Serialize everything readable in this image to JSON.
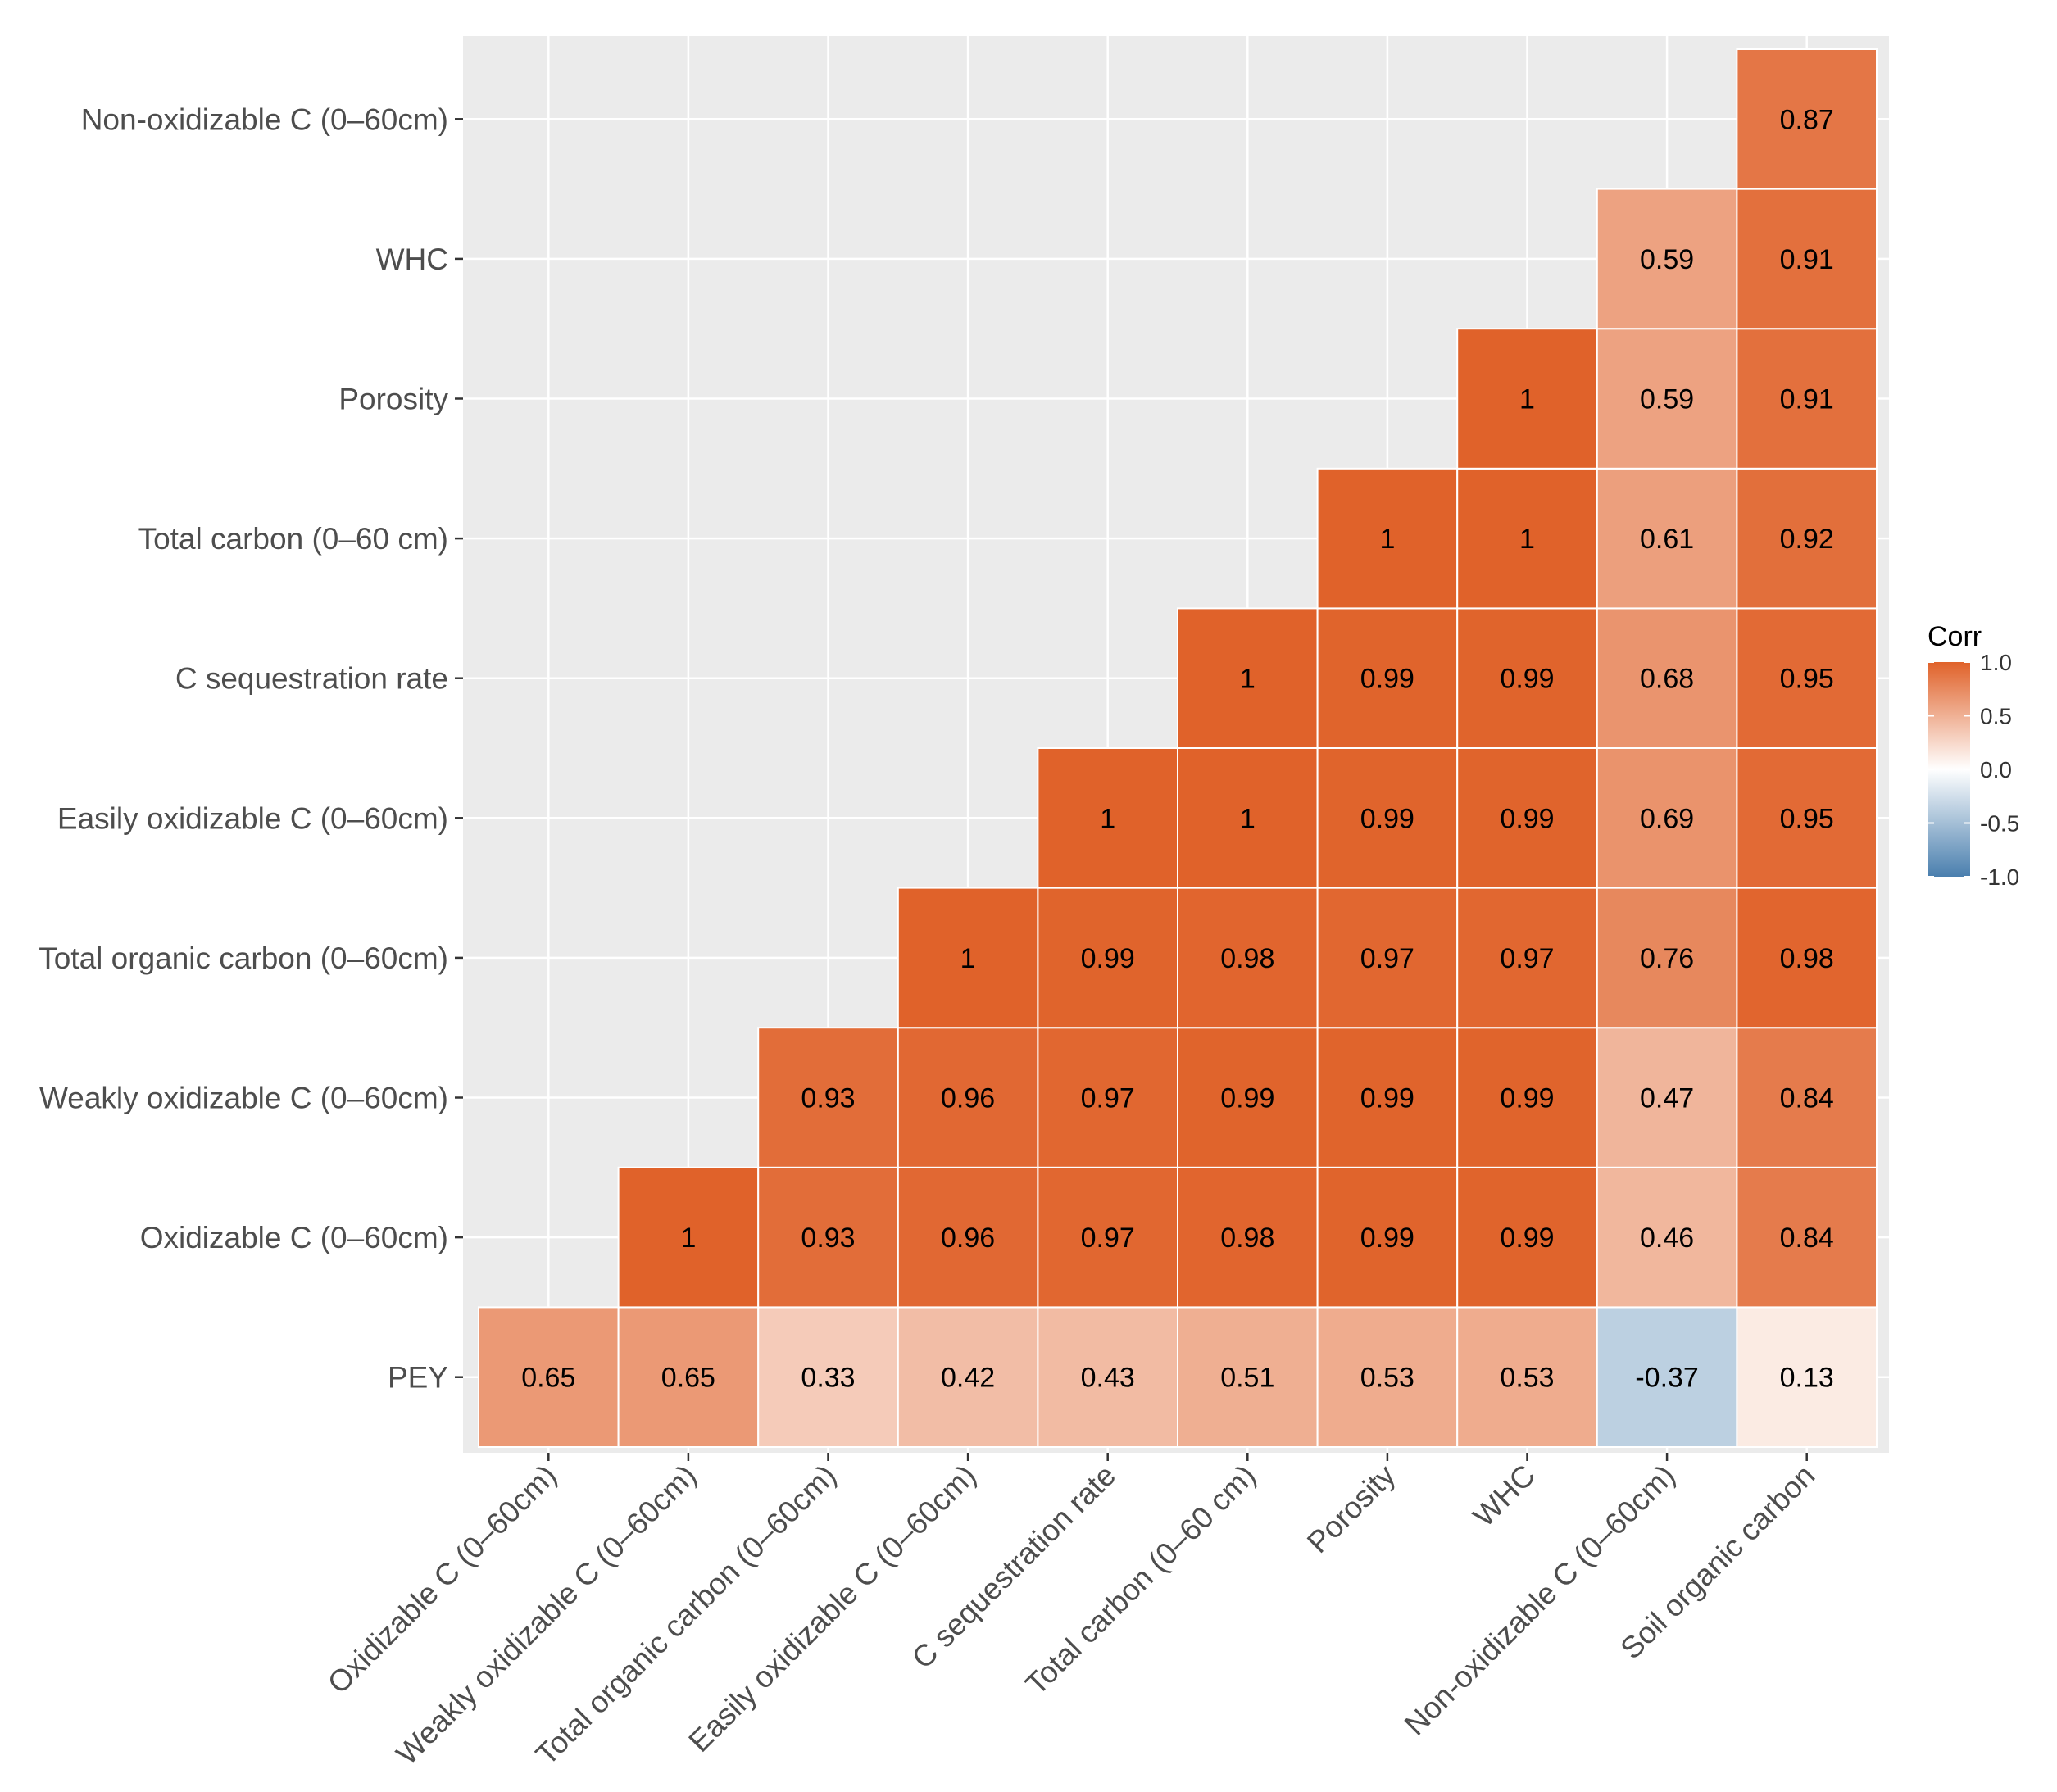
{
  "chart_data": {
    "type": "heatmap",
    "title": "",
    "xlabel": "",
    "ylabel": "",
    "x_categories": [
      "Oxidizable C (0–60cm)",
      "Weakly oxidizable C (0–60cm)",
      "Total organic carbon (0–60cm)",
      "Easily oxidizable C (0–60cm)",
      "C sequestration rate",
      "Total carbon (0–60 cm)",
      "Porosity",
      "WHC",
      "Non-oxidizable C (0–60cm)",
      "Soil organic carbon"
    ],
    "y_categories": [
      "PEY",
      "Oxidizable C (0–60cm)",
      "Weakly oxidizable C (0–60cm)",
      "Total organic carbon (0–60cm)",
      "Easily oxidizable C (0–60cm)",
      "C sequestration rate",
      "Total carbon (0–60 cm)",
      "Porosity",
      "WHC",
      "Non-oxidizable C (0–60cm)"
    ],
    "values": [
      [
        0.65,
        0.65,
        0.33,
        0.42,
        0.43,
        0.51,
        0.53,
        0.53,
        -0.37,
        0.13
      ],
      [
        null,
        1,
        0.93,
        0.96,
        0.97,
        0.98,
        0.99,
        0.99,
        0.46,
        0.84
      ],
      [
        null,
        null,
        0.93,
        0.96,
        0.97,
        0.99,
        0.99,
        0.99,
        0.47,
        0.84
      ],
      [
        null,
        null,
        null,
        1,
        0.99,
        0.98,
        0.97,
        0.97,
        0.76,
        0.98
      ],
      [
        null,
        null,
        null,
        null,
        1,
        1,
        0.99,
        0.99,
        0.69,
        0.95
      ],
      [
        null,
        null,
        null,
        null,
        null,
        1,
        0.99,
        0.99,
        0.68,
        0.95
      ],
      [
        null,
        null,
        null,
        null,
        null,
        null,
        1,
        1,
        0.61,
        0.92
      ],
      [
        null,
        null,
        null,
        null,
        null,
        null,
        null,
        1,
        0.59,
        0.91
      ],
      [
        null,
        null,
        null,
        null,
        null,
        null,
        null,
        null,
        0.59,
        0.91
      ],
      [
        null,
        null,
        null,
        null,
        null,
        null,
        null,
        null,
        null,
        0.87
      ]
    ],
    "cell_labels": [
      [
        "0.65",
        "0.65",
        "0.33",
        "0.42",
        "0.43",
        "0.51",
        "0.53",
        "0.53",
        "-0.37",
        "0.13"
      ],
      [
        null,
        "1",
        "0.93",
        "0.96",
        "0.97",
        "0.98",
        "0.99",
        "0.99",
        "0.46",
        "0.84"
      ],
      [
        null,
        null,
        "0.93",
        "0.96",
        "0.97",
        "0.99",
        "0.99",
        "0.99",
        "0.47",
        "0.84"
      ],
      [
        null,
        null,
        null,
        "1",
        "0.99",
        "0.98",
        "0.97",
        "0.97",
        "0.76",
        "0.98"
      ],
      [
        null,
        null,
        null,
        null,
        "1",
        "1",
        "0.99",
        "0.99",
        "0.69",
        "0.95"
      ],
      [
        null,
        null,
        null,
        null,
        null,
        "1",
        "0.99",
        "0.99",
        "0.68",
        "0.95"
      ],
      [
        null,
        null,
        null,
        null,
        null,
        null,
        "1",
        "1",
        "0.61",
        "0.92"
      ],
      [
        null,
        null,
        null,
        null,
        null,
        null,
        null,
        "1",
        "0.59",
        "0.91"
      ],
      [
        null,
        null,
        null,
        null,
        null,
        null,
        null,
        null,
        "0.59",
        "0.91"
      ],
      [
        null,
        null,
        null,
        null,
        null,
        null,
        null,
        null,
        null,
        "0.87"
      ]
    ],
    "value_range": [
      -1,
      1
    ],
    "grid": true,
    "legend": {
      "title": "Corr",
      "placement": "right",
      "tick_labels": [
        "1.0",
        "0.5",
        "0.0",
        "-0.5",
        "-1.0"
      ],
      "tick_values": [
        1,
        0.5,
        0,
        -0.5,
        -1
      ],
      "gradient": {
        "low": "#4a7fae",
        "mid": "#ffffff",
        "high": "#e0622a"
      }
    },
    "colors": {
      "panel_background": "#ebebeb",
      "grid_line": "#ffffff",
      "axis_text": "#4d4d4d",
      "cell_text": "#000000",
      "tick_mark": "#333333"
    }
  }
}
